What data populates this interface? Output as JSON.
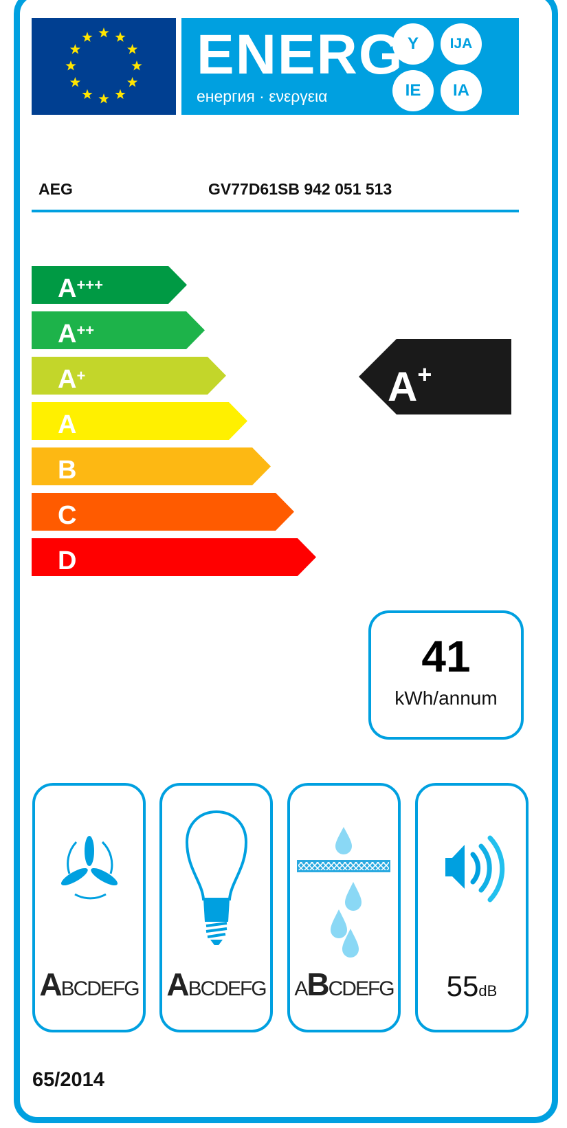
{
  "header": {
    "energy_word": "ENERG",
    "subtitle": "енергия · ενεργεια",
    "language_suffixes": [
      "Y",
      "IJA",
      "IE",
      "IA"
    ],
    "flag_color": "#003f91",
    "energy_color": "#00a0e0"
  },
  "product": {
    "supplier": "AEG",
    "model": "GV77D61SB  942 051 513"
  },
  "scale": [
    {
      "letter": "A",
      "plus": "+++",
      "color": "#009a44"
    },
    {
      "letter": "A",
      "plus": "++",
      "color": "#1db34a"
    },
    {
      "letter": "A",
      "plus": "+",
      "color": "#c3d62a"
    },
    {
      "letter": "A",
      "plus": "",
      "color": "#fff000"
    },
    {
      "letter": "B",
      "plus": "",
      "color": "#fdb813"
    },
    {
      "letter": "C",
      "plus": "",
      "color": "#ff5b00"
    },
    {
      "letter": "D",
      "plus": "",
      "color": "#ff0000"
    }
  ],
  "rating": {
    "letter": "A",
    "plus": "+",
    "color": "#1a1a1a"
  },
  "consumption": {
    "value": "41",
    "unit": "kWh/annum"
  },
  "pictograms": [
    {
      "icon": "fan-icon",
      "selected": "A",
      "rest": "BCDEFG"
    },
    {
      "icon": "light-bulb-icon",
      "selected": "A",
      "rest": "BCDEFG"
    },
    {
      "icon": "grease-filter-icon",
      "before": "A",
      "selected": "B",
      "rest": "CDEFG"
    },
    {
      "icon": "speaker-icon",
      "value": "55",
      "unit": "dB"
    }
  ],
  "regulation": "65/2014"
}
